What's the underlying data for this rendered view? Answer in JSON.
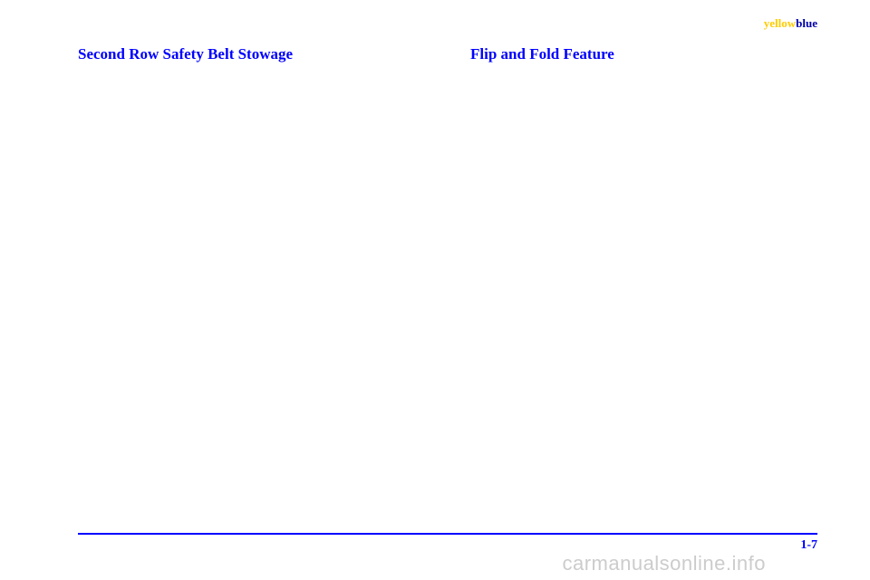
{
  "header": {
    "yellow_word": "yellow",
    "blue_word": "blue"
  },
  "left_column": {
    "heading": "Second Row Safety Belt Stowage"
  },
  "right_column": {
    "heading": "Flip and Fold Feature"
  },
  "footer": {
    "page_number": "1-7",
    "watermark": "carmanualsonline.info"
  },
  "colors": {
    "heading_color": "#0000ff",
    "line_color": "#0000ff",
    "page_number_color": "#0000ff",
    "yellow_color": "#ffcc00",
    "blue_color": "#0000aa",
    "watermark_color": "#cccccc",
    "background": "#ffffff"
  }
}
